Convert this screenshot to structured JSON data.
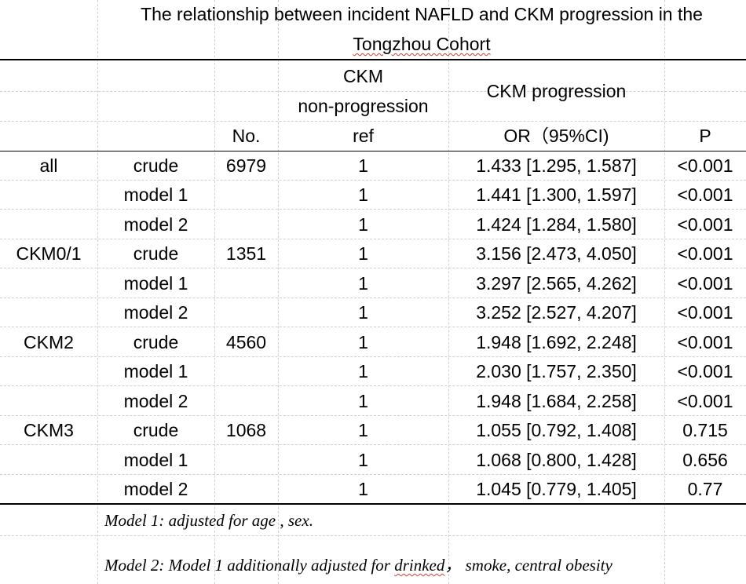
{
  "title": {
    "line1": "The relationship between incident NAFLD and CKM progression in the",
    "line2": "Tongzhou Cohort"
  },
  "header": {
    "col_nonprog_line1": "CKM",
    "col_nonprog_line2": "non-progression",
    "col_prog": "CKM progression",
    "col_no": "No.",
    "col_ref": "ref",
    "col_or": "OR（95%CI)",
    "col_p": "P"
  },
  "rows": [
    {
      "group": "all",
      "model": "crude",
      "no": "6979",
      "ref": "1",
      "or": "1.433 [1.295, 1.587]",
      "p": "<0.001"
    },
    {
      "group": "",
      "model": "model 1",
      "no": "",
      "ref": "1",
      "or": "1.441 [1.300, 1.597]",
      "p": "<0.001"
    },
    {
      "group": "",
      "model": "model 2",
      "no": "",
      "ref": "1",
      "or": "1.424 [1.284, 1.580]",
      "p": "<0.001"
    },
    {
      "group": "CKM0/1",
      "model": "crude",
      "no": "1351",
      "ref": "1",
      "or": "3.156 [2.473, 4.050]",
      "p": "<0.001"
    },
    {
      "group": "",
      "model": "model 1",
      "no": "",
      "ref": "1",
      "or": "3.297 [2.565, 4.262]",
      "p": "<0.001"
    },
    {
      "group": "",
      "model": "model 2",
      "no": "",
      "ref": "1",
      "or": "3.252 [2.527, 4.207]",
      "p": "<0.001"
    },
    {
      "group": "CKM2",
      "model": "crude",
      "no": "4560",
      "ref": "1",
      "or": "1.948 [1.692, 2.248]",
      "p": "<0.001"
    },
    {
      "group": "",
      "model": "model 1",
      "no": "",
      "ref": "1",
      "or": "2.030 [1.757, 2.350]",
      "p": "<0.001"
    },
    {
      "group": "",
      "model": "model 2",
      "no": "",
      "ref": "1",
      "or": "1.948 [1.684, 2.258]",
      "p": "<0.001"
    },
    {
      "group": "CKM3",
      "model": "crude",
      "no": "1068",
      "ref": "1",
      "or": "1.055 [0.792, 1.408]",
      "p": "0.715"
    },
    {
      "group": "",
      "model": "model 1",
      "no": "",
      "ref": "1",
      "or": "1.068 [0.800, 1.428]",
      "p": "0.656"
    },
    {
      "group": "",
      "model": "model 2",
      "no": "",
      "ref": "1",
      "or": "1.045 [0.779, 1.405]",
      "p": "0.77"
    }
  ],
  "notes": {
    "model1": "Model 1: adjusted for age , sex.",
    "model2_prefix": "Model 2: Model 1 additionally adjusted for ",
    "model2_underlined": "drinked",
    "model2_suffix": "， smoke, central obesity"
  }
}
